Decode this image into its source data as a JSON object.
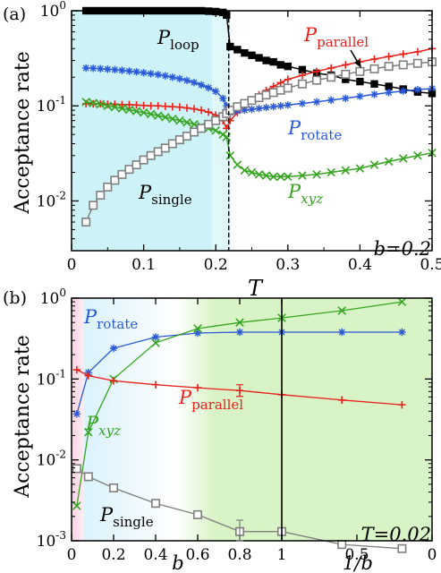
{
  "chart_data": [
    {
      "type": "line",
      "panel_label": "(a)",
      "xlabel": "T",
      "ylabel": "Acceptance rate",
      "xlim": [
        0.0,
        0.5
      ],
      "ylim": [
        0.003,
        1.0
      ],
      "yscale": "log",
      "xticks": [
        "0",
        "0.1",
        "0.2",
        "0.3",
        "0.4",
        "0.5"
      ],
      "yticks": [
        "10^-2",
        "10^-1",
        "10^0"
      ],
      "annotation": "b=0.2",
      "shaded_region": {
        "x": [
          0.0,
          0.22
        ],
        "color": "#cdf3f8"
      },
      "transition_T": 0.218,
      "series": [
        {
          "name": "P_loop",
          "color": "#000000",
          "marker": "filled-square",
          "x": [
            0.02,
            0.03,
            0.04,
            0.05,
            0.06,
            0.07,
            0.08,
            0.09,
            0.1,
            0.11,
            0.12,
            0.13,
            0.14,
            0.15,
            0.16,
            0.17,
            0.18,
            0.19,
            0.2,
            0.21,
            0.215,
            0.22,
            0.23,
            0.24,
            0.25,
            0.26,
            0.27,
            0.28,
            0.29,
            0.3,
            0.32,
            0.34,
            0.36,
            0.38,
            0.4,
            0.42,
            0.44,
            0.46,
            0.48,
            0.5
          ],
          "values": [
            1.0,
            1.0,
            1.0,
            1.0,
            1.0,
            1.0,
            1.0,
            1.0,
            1.0,
            1.0,
            1.0,
            1.0,
            1.0,
            1.0,
            1.0,
            1.0,
            1.0,
            0.99,
            0.98,
            0.96,
            0.9,
            0.42,
            0.39,
            0.36,
            0.34,
            0.32,
            0.3,
            0.29,
            0.27,
            0.26,
            0.24,
            0.22,
            0.21,
            0.19,
            0.18,
            0.17,
            0.16,
            0.15,
            0.14,
            0.135
          ]
        },
        {
          "name": "P_parallel",
          "color": "#e8211b",
          "marker": "plus",
          "x": [
            0.02,
            0.03,
            0.04,
            0.05,
            0.06,
            0.07,
            0.08,
            0.09,
            0.1,
            0.11,
            0.12,
            0.13,
            0.14,
            0.15,
            0.16,
            0.17,
            0.18,
            0.19,
            0.2,
            0.21,
            0.215,
            0.22,
            0.23,
            0.24,
            0.25,
            0.26,
            0.27,
            0.28,
            0.29,
            0.3,
            0.32,
            0.34,
            0.36,
            0.38,
            0.4,
            0.42,
            0.44,
            0.46,
            0.48,
            0.5
          ],
          "values": [
            0.105,
            0.105,
            0.105,
            0.104,
            0.104,
            0.103,
            0.103,
            0.102,
            0.101,
            0.1,
            0.1,
            0.099,
            0.098,
            0.097,
            0.095,
            0.093,
            0.09,
            0.086,
            0.08,
            0.07,
            0.058,
            0.07,
            0.085,
            0.1,
            0.115,
            0.13,
            0.145,
            0.16,
            0.175,
            0.19,
            0.21,
            0.23,
            0.25,
            0.27,
            0.29,
            0.31,
            0.33,
            0.35,
            0.37,
            0.4
          ]
        },
        {
          "name": "P_rotate",
          "color": "#2a5ad8",
          "marker": "asterisk",
          "x": [
            0.02,
            0.03,
            0.04,
            0.05,
            0.06,
            0.07,
            0.08,
            0.09,
            0.1,
            0.11,
            0.12,
            0.13,
            0.14,
            0.15,
            0.16,
            0.17,
            0.18,
            0.19,
            0.2,
            0.21,
            0.215,
            0.22,
            0.23,
            0.24,
            0.25,
            0.26,
            0.27,
            0.28,
            0.29,
            0.3,
            0.32,
            0.34,
            0.36,
            0.38,
            0.4,
            0.42,
            0.44,
            0.46,
            0.48,
            0.5
          ],
          "values": [
            0.25,
            0.248,
            0.246,
            0.243,
            0.24,
            0.236,
            0.232,
            0.228,
            0.223,
            0.218,
            0.213,
            0.207,
            0.2,
            0.193,
            0.185,
            0.176,
            0.166,
            0.155,
            0.142,
            0.12,
            0.1,
            0.085,
            0.088,
            0.09,
            0.092,
            0.094,
            0.096,
            0.098,
            0.1,
            0.102,
            0.106,
            0.11,
            0.115,
            0.12,
            0.126,
            0.132,
            0.138,
            0.143,
            0.148,
            0.152
          ]
        },
        {
          "name": "P_xyz",
          "color": "#36a420",
          "marker": "x",
          "x": [
            0.02,
            0.03,
            0.04,
            0.05,
            0.06,
            0.07,
            0.08,
            0.09,
            0.1,
            0.11,
            0.12,
            0.13,
            0.14,
            0.15,
            0.16,
            0.17,
            0.18,
            0.19,
            0.2,
            0.21,
            0.215,
            0.22,
            0.23,
            0.24,
            0.25,
            0.26,
            0.27,
            0.28,
            0.29,
            0.3,
            0.32,
            0.34,
            0.36,
            0.38,
            0.4,
            0.42,
            0.44,
            0.46,
            0.48,
            0.5
          ],
          "values": [
            0.11,
            0.107,
            0.104,
            0.1,
            0.097,
            0.094,
            0.091,
            0.088,
            0.085,
            0.082,
            0.079,
            0.076,
            0.073,
            0.07,
            0.067,
            0.064,
            0.061,
            0.058,
            0.055,
            0.05,
            0.047,
            0.03,
            0.024,
            0.021,
            0.02,
            0.019,
            0.0185,
            0.018,
            0.018,
            0.018,
            0.0185,
            0.019,
            0.02,
            0.021,
            0.022,
            0.024,
            0.026,
            0.028,
            0.03,
            0.032
          ]
        },
        {
          "name": "P_single",
          "color": "#7f7f7f",
          "marker": "open-square",
          "x": [
            0.02,
            0.03,
            0.04,
            0.05,
            0.06,
            0.07,
            0.08,
            0.09,
            0.1,
            0.11,
            0.12,
            0.13,
            0.14,
            0.15,
            0.16,
            0.17,
            0.18,
            0.19,
            0.2,
            0.21,
            0.215,
            0.22,
            0.23,
            0.24,
            0.25,
            0.26,
            0.27,
            0.28,
            0.29,
            0.3,
            0.32,
            0.34,
            0.36,
            0.38,
            0.4,
            0.42,
            0.44,
            0.46,
            0.48,
            0.5
          ],
          "values": [
            0.006,
            0.009,
            0.0115,
            0.014,
            0.0165,
            0.019,
            0.0215,
            0.024,
            0.027,
            0.03,
            0.033,
            0.036,
            0.04,
            0.044,
            0.048,
            0.053,
            0.058,
            0.064,
            0.07,
            0.077,
            0.083,
            0.09,
            0.098,
            0.106,
            0.114,
            0.122,
            0.13,
            0.138,
            0.146,
            0.154,
            0.17,
            0.186,
            0.2,
            0.215,
            0.23,
            0.245,
            0.26,
            0.27,
            0.28,
            0.29
          ]
        }
      ],
      "labels": [
        {
          "main": "P",
          "sub": "loop",
          "color": "#000000"
        },
        {
          "main": "P",
          "sub": "parallel",
          "color": "#e8211b"
        },
        {
          "main": "P",
          "sub": "rotate",
          "color": "#2a5ad8"
        },
        {
          "main": "P",
          "sub": "xyz",
          "color": "#36a420"
        },
        {
          "main": "P",
          "sub": "single",
          "color": "#000000"
        }
      ]
    },
    {
      "type": "line",
      "panel_label": "(b)",
      "xlabel_left": "b",
      "xlabel_right": "1/b",
      "ylabel": "Acceptance rate",
      "ylim": [
        0.001,
        1.0
      ],
      "yscale": "log",
      "xticks_left": [
        "0",
        "0.2",
        "0.4",
        "0.6",
        "0.8",
        "1"
      ],
      "xticks_right": [
        "1",
        "0.5",
        "0"
      ],
      "yticks": [
        "10^-3",
        "10^-2",
        "10^-1",
        "10^0"
      ],
      "annotation": "T=0.02",
      "shaded_regions": [
        {
          "x": [
            0.0,
            0.06
          ],
          "color": "#fbd3e2"
        },
        {
          "x": [
            0.06,
            0.45
          ],
          "color": "#d6f1fb"
        },
        {
          "x": [
            0.5,
            2.0
          ],
          "color": "#d8f3c6"
        }
      ],
      "x_axis_note": "left half: b from 0 to 1; right half: 1/b from 1 to 0 (combined coordinate, 0..2)",
      "series": [
        {
          "name": "P_rotate",
          "color": "#2a5ad8",
          "marker": "asterisk",
          "x": [
            0.025,
            0.08,
            0.2,
            0.4,
            0.6,
            0.8,
            1.0,
            1.4,
            1.8
          ],
          "values": [
            0.037,
            0.12,
            0.24,
            0.33,
            0.37,
            0.38,
            0.38,
            0.38,
            0.38
          ]
        },
        {
          "name": "P_xyz",
          "color": "#36a420",
          "marker": "x",
          "x": [
            0.025,
            0.08,
            0.2,
            0.4,
            0.6,
            0.8,
            1.0,
            1.4,
            1.8
          ],
          "values": [
            0.0027,
            0.022,
            0.1,
            0.28,
            0.42,
            0.5,
            0.57,
            0.7,
            0.9
          ]
        },
        {
          "name": "P_parallel",
          "color": "#e8211b",
          "marker": "plus",
          "x": [
            0.025,
            0.08,
            0.2,
            0.4,
            0.6,
            0.8,
            1.0,
            1.4,
            1.8
          ],
          "values": [
            0.13,
            0.11,
            0.095,
            0.085,
            0.078,
            0.072,
            0.064,
            0.055,
            0.048
          ]
        },
        {
          "name": "P_single",
          "color": "#7f7f7f",
          "marker": "open-square",
          "x": [
            0.025,
            0.08,
            0.2,
            0.4,
            0.6,
            0.8,
            1.0,
            1.4,
            1.8
          ],
          "values": [
            0.0078,
            0.0062,
            0.0045,
            0.0029,
            0.0021,
            0.0013,
            0.0013,
            0.0009,
            0.0008
          ]
        }
      ],
      "labels": [
        {
          "main": "P",
          "sub": "rotate",
          "color": "#2a5ad8"
        },
        {
          "main": "P",
          "sub": "xyz",
          "color": "#36a420"
        },
        {
          "main": "P",
          "sub": "parallel",
          "color": "#e8211b"
        },
        {
          "main": "P",
          "sub": "single",
          "color": "#000000"
        }
      ]
    }
  ]
}
